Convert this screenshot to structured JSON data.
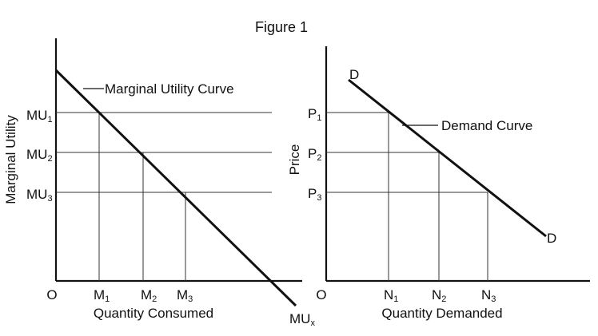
{
  "title": "Figure 1",
  "colors": {
    "ink": "#111111",
    "background": "#ffffff"
  },
  "left_panel": {
    "y_axis_label": "Marginal Utility",
    "x_axis_label": "Quantity Consumed",
    "origin": "O",
    "y_ticks": [
      {
        "base": "MU",
        "sub": "1"
      },
      {
        "base": "MU",
        "sub": "2"
      },
      {
        "base": "MU",
        "sub": "3"
      }
    ],
    "x_ticks": [
      {
        "base": "M",
        "sub": "1"
      },
      {
        "base": "M",
        "sub": "2"
      },
      {
        "base": "M",
        "sub": "3"
      }
    ],
    "curve_label": "Marginal Utility Curve",
    "curve_end_label": {
      "base": "MU",
      "sub": "x"
    }
  },
  "right_panel": {
    "y_axis_label": "Price",
    "x_axis_label": "Quantity Demanded",
    "origin": "O",
    "y_ticks": [
      {
        "base": "P",
        "sub": "1"
      },
      {
        "base": "P",
        "sub": "2"
      },
      {
        "base": "P",
        "sub": "3"
      }
    ],
    "x_ticks": [
      {
        "base": "N",
        "sub": "1"
      },
      {
        "base": "N",
        "sub": "2"
      },
      {
        "base": "N",
        "sub": "3"
      }
    ],
    "curve_label": "Demand Curve",
    "curve_start_label": "D",
    "curve_end_label": "D"
  }
}
